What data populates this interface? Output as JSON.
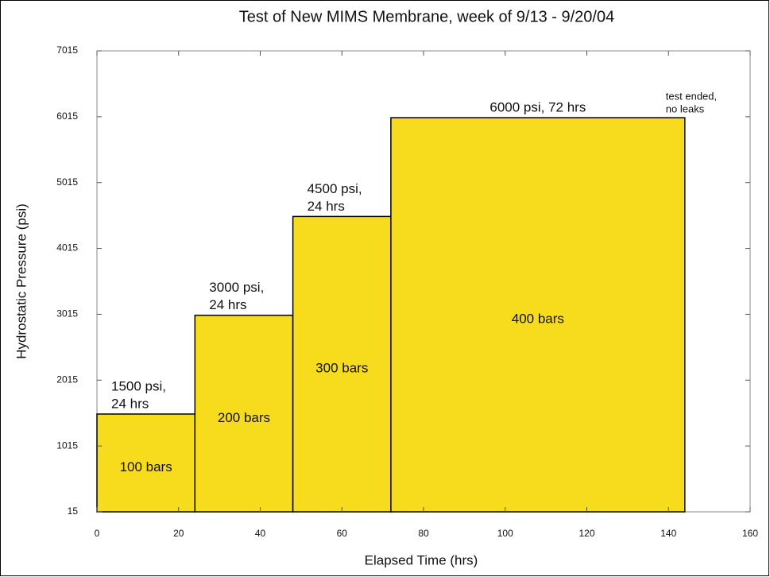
{
  "chart_data": {
    "type": "histogram",
    "title": "Test of New MIMS Membrane, week of 9/13 - 9/20/04",
    "x_label": "Elapsed Time (hrs)",
    "y_label": "Hydrostatic Pressure (psi)",
    "bins": [
      0,
      24,
      48,
      72,
      144
    ],
    "values": [
      1500,
      3000,
      4500,
      6000
    ],
    "color": "#f7dc1e",
    "top_labels": [
      [
        "1500 psi,",
        "24 hrs"
      ],
      [
        "3000 psi,",
        "24 hrs"
      ],
      [
        "4500 psi,",
        "24 hrs"
      ],
      [
        "6000 psi, 72 hrs"
      ]
    ],
    "inner_labels": [
      "100 bars",
      "200 bars",
      "300 bars",
      "400 bars"
    ],
    "end_note": [
      "test ended,",
      "no leaks"
    ],
    "xlim": [
      0,
      160
    ],
    "xticks": [
      0,
      20,
      40,
      60,
      80,
      100,
      120,
      140,
      160
    ],
    "ylim": [
      15,
      7015
    ],
    "yticks": [
      15,
      1015,
      2015,
      3015,
      4015,
      5015,
      6015,
      7015
    ],
    "grid": false
  }
}
